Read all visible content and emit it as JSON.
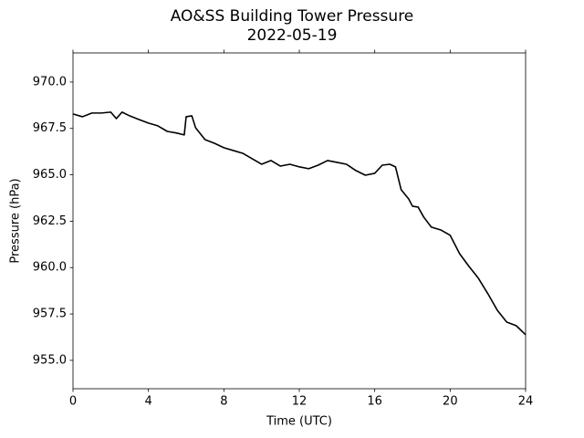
{
  "chart_data": {
    "type": "line",
    "title": "AO&SS Building Tower Pressure",
    "subtitle": "2022-05-19",
    "x_label": "Time (UTC)",
    "y_label": "Pressure (hPa)",
    "xlim": [
      0,
      24
    ],
    "xticks": [
      0,
      4,
      8,
      12,
      16,
      20,
      24
    ],
    "ylim": [
      953.47,
      971.57
    ],
    "yticks": [
      {
        "value": 955,
        "label": "955.0"
      },
      957.5,
      {
        "value": 960,
        "label": "960.0"
      },
      962.5,
      {
        "value": 965,
        "label": "965.0"
      },
      967.5,
      {
        "value": 970,
        "label": "970.0"
      }
    ],
    "grid": false,
    "series": [
      {
        "name": "Pressure",
        "color": "#000000",
        "x": [
          0,
          0.5,
          1,
          1.5,
          2,
          2.3,
          2.6,
          3,
          3.5,
          4,
          4.5,
          5,
          5.5,
          5.9,
          6.0,
          6.3,
          6.5,
          7,
          7.5,
          8,
          8.5,
          9,
          9.5,
          10,
          10.5,
          11,
          11.5,
          12,
          12.5,
          13,
          13.5,
          14,
          14.5,
          15,
          15.5,
          16,
          16.4,
          16.8,
          17.1,
          17.4,
          17.8,
          18,
          18.3,
          18.6,
          19,
          19.5,
          20,
          20.5,
          21,
          21.5,
          22,
          22.5,
          23,
          23.5,
          24
        ],
        "values": [
          968.28,
          968.13,
          968.33,
          968.33,
          968.38,
          968.03,
          968.38,
          968.18,
          967.98,
          967.79,
          967.64,
          967.34,
          967.25,
          967.15,
          968.13,
          968.18,
          967.54,
          966.9,
          966.7,
          966.46,
          966.31,
          966.16,
          965.87,
          965.57,
          965.77,
          965.47,
          965.57,
          965.43,
          965.33,
          965.52,
          965.77,
          965.67,
          965.57,
          965.23,
          964.98,
          965.08,
          965.52,
          965.57,
          965.43,
          964.2,
          963.7,
          963.31,
          963.26,
          962.72,
          962.18,
          962.03,
          961.74,
          960.75,
          960.06,
          959.42,
          958.59,
          957.7,
          957.06,
          956.87,
          956.38
        ]
      }
    ]
  }
}
